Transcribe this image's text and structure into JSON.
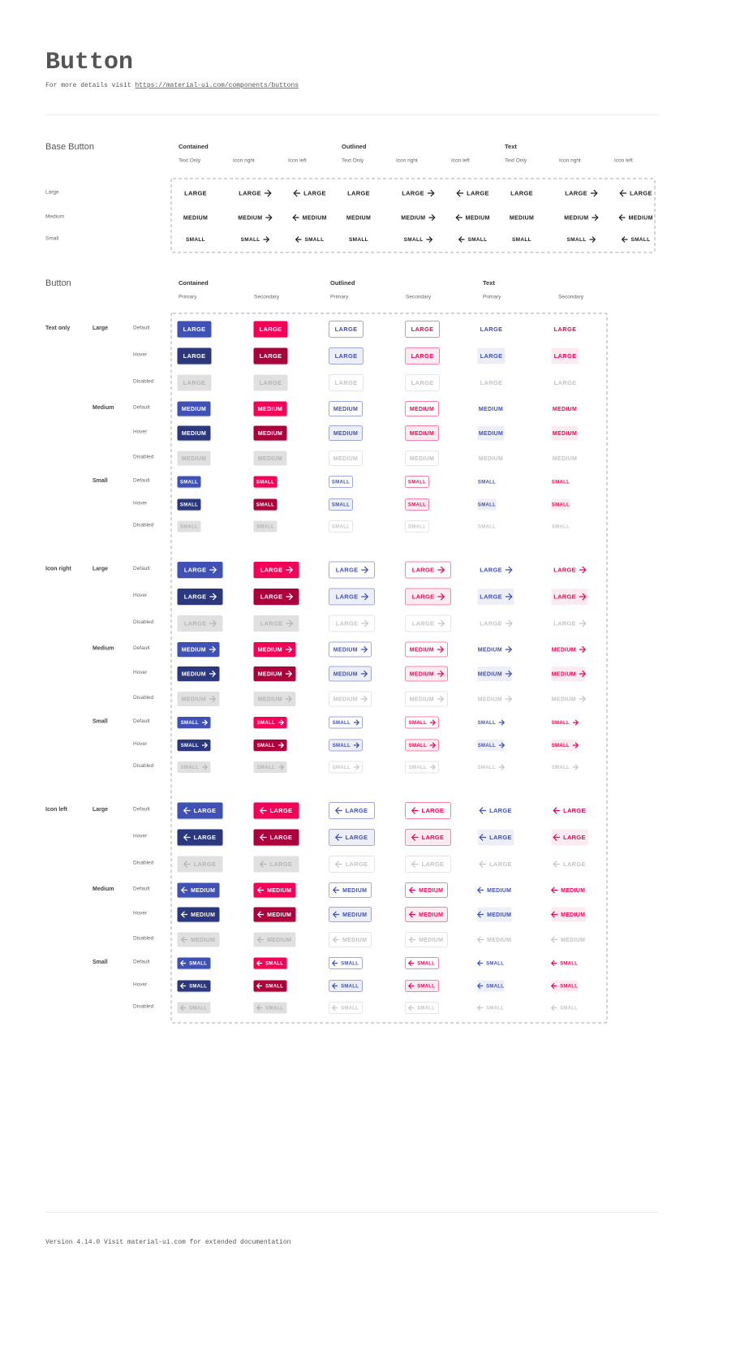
{
  "header": {
    "title": "Button",
    "subtitle": "For more details visit",
    "link": "https://material-ui.com/components/buttons"
  },
  "base_button": {
    "title": "Base Button",
    "groups": [
      "Contained",
      "Outlined",
      "Text"
    ],
    "columns": [
      "Text Only",
      "Icon right",
      "Icon left"
    ],
    "rows": [
      {
        "label": "Large",
        "text": "LARGE"
      },
      {
        "label": "Medium",
        "text": "MEDIUM"
      },
      {
        "label": "Small",
        "text": "SMALL"
      }
    ]
  },
  "button": {
    "title": "Button",
    "groups": [
      {
        "name": "Contained",
        "variants": [
          "Primary",
          "Secondary"
        ]
      },
      {
        "name": "Outlined",
        "variants": [
          "Primary",
          "Secondary"
        ]
      },
      {
        "name": "Text",
        "variants": [
          "Primary",
          "Secondary"
        ]
      }
    ],
    "modes": [
      "Text only",
      "Icon right",
      "Icon left"
    ],
    "sizes": [
      {
        "label": "Large",
        "text": "LARGE"
      },
      {
        "label": "Medium",
        "text": "MEDIUM"
      },
      {
        "label": "Small",
        "text": "SMALL"
      }
    ],
    "states": [
      "Default",
      "Hover",
      "Disabled"
    ]
  },
  "footer": {
    "text": "Version 4.14.0  Visit material-ui.com for extended documentation"
  }
}
